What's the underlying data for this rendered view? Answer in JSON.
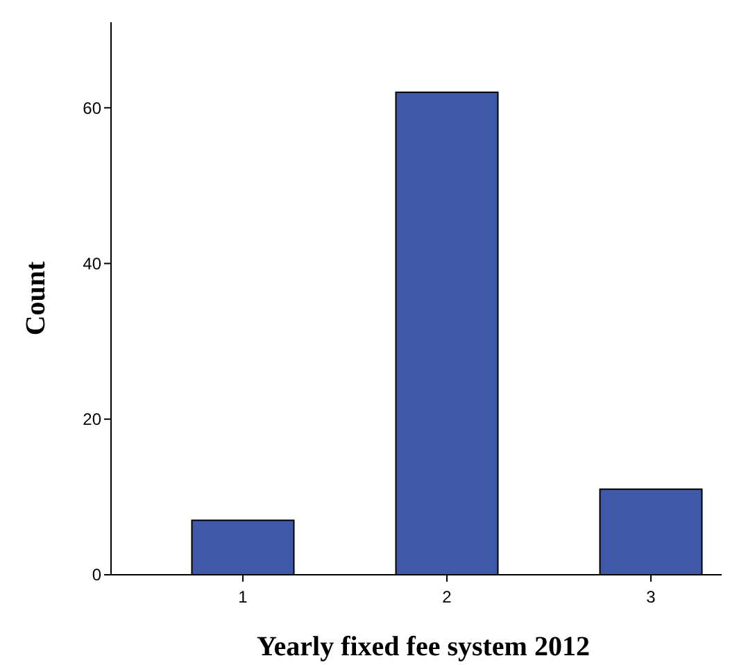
{
  "chart_data": {
    "type": "bar",
    "xlabel": "Yearly fixed fee system 2012",
    "ylabel": "Count",
    "categories": [
      "1",
      "2",
      "3"
    ],
    "values": [
      7,
      62,
      11
    ],
    "color": "#3f58a8",
    "ylim": [
      0,
      71
    ],
    "yticks": [
      0,
      20,
      40,
      60
    ],
    "grid": false
  }
}
